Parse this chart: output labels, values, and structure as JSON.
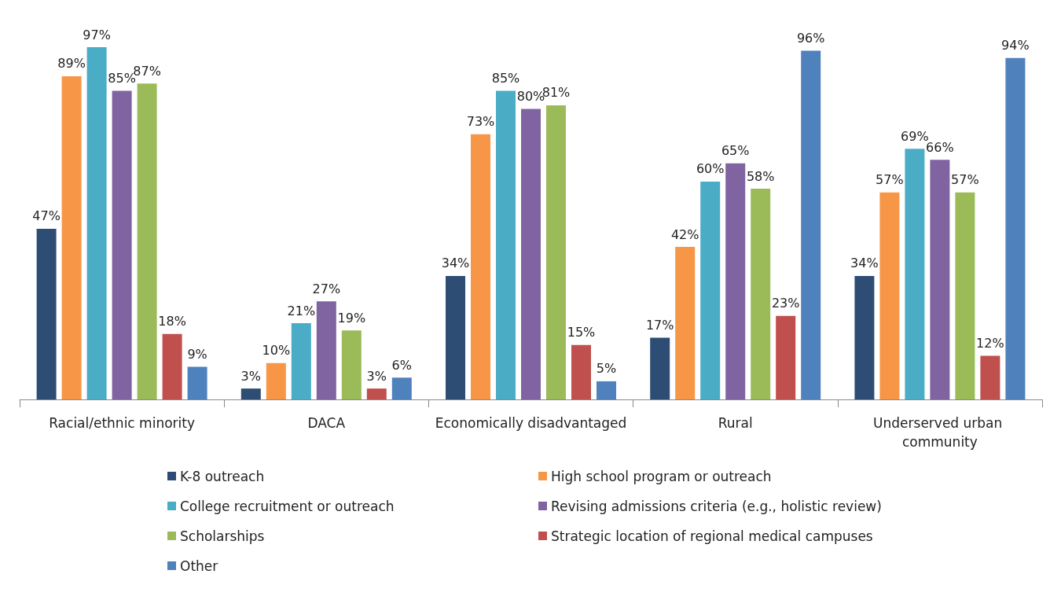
{
  "chart_data": {
    "type": "bar",
    "categories": [
      "Racial/ethnic minority",
      "DACA",
      "Economically disadvantaged",
      "Rural",
      "Underserved urban community"
    ],
    "series": [
      {
        "name": "K-8 outreach",
        "color": "#2e4d75",
        "values": [
          47,
          3,
          34,
          17,
          34
        ],
        "value_labels": [
          "47%",
          "3%",
          "34%",
          "17%",
          "34%"
        ]
      },
      {
        "name": "High school program or outreach",
        "color": "#f79646",
        "values": [
          89,
          10,
          73,
          42,
          57
        ],
        "value_labels": [
          "89%",
          "10%",
          "73%",
          "42%",
          "57%"
        ]
      },
      {
        "name": "College recruitment or outreach",
        "color": "#4bacc6",
        "values": [
          97,
          21,
          85,
          60,
          69
        ],
        "value_labels": [
          "97%",
          "21%",
          "85%",
          "60%",
          "69%"
        ]
      },
      {
        "name": "Revising admissions criteria (e.g., holistic review)",
        "color": "#8064a2",
        "values": [
          85,
          27,
          80,
          65,
          66
        ],
        "value_labels": [
          "85%",
          "27%",
          "80%",
          "65%",
          "66%"
        ]
      },
      {
        "name": "Scholarships",
        "color": "#9bbb59",
        "values": [
          87,
          19,
          81,
          58,
          57
        ],
        "value_labels": [
          "87%",
          "19%",
          "81%",
          "58%",
          "57%"
        ]
      },
      {
        "name": "Strategic location of regional medical campuses",
        "color": "#c0504d",
        "values": [
          18,
          3,
          15,
          23,
          12
        ],
        "value_labels": [
          "18%",
          "3%",
          "15%",
          "23%",
          "12%"
        ]
      },
      {
        "name": "Other",
        "color": "#4f81bd",
        "values": [
          9,
          6,
          5,
          96,
          94
        ],
        "value_labels": [
          "9%",
          "6%",
          "5%",
          "96%",
          "94%"
        ]
      }
    ],
    "legend": "bottom"
  }
}
